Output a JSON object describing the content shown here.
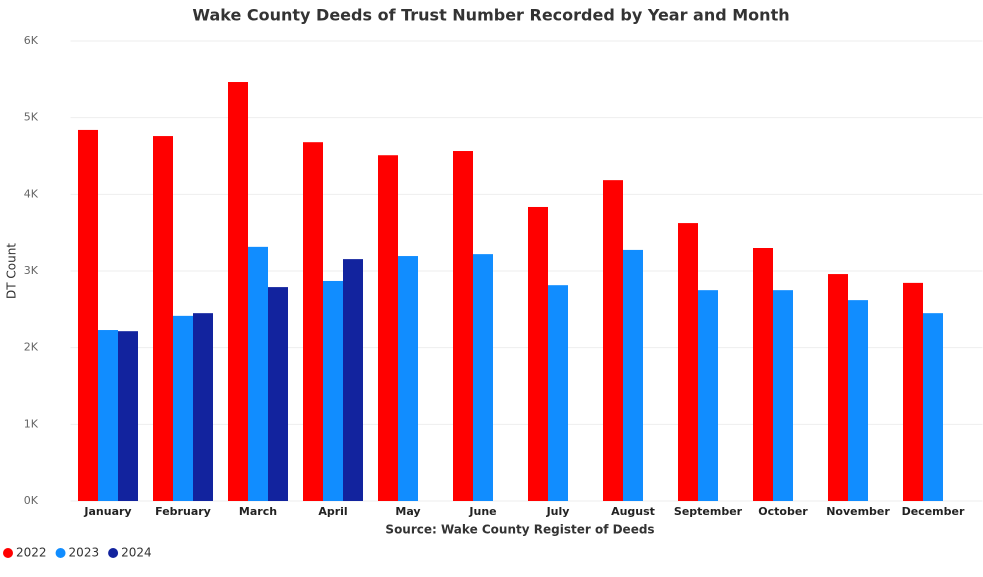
{
  "chart_data": {
    "type": "bar",
    "title": "Wake County Deeds of Trust Number Recorded by Year and Month",
    "x_label": "Source: Wake County Register of Deeds",
    "y_label": "DT Count",
    "categories": [
      "January",
      "February",
      "March",
      "April",
      "May",
      "June",
      "July",
      "August",
      "September",
      "October",
      "November",
      "December"
    ],
    "series": [
      {
        "name": "2022",
        "color": "#ff0000",
        "values": [
          4840,
          4760,
          5465,
          4680,
          4510,
          4565,
          3835,
          4185,
          3625,
          3300,
          2960,
          2845
        ]
      },
      {
        "name": "2023",
        "color": "#118dff",
        "values": [
          2230,
          2415,
          3315,
          2870,
          3195,
          3220,
          2815,
          3275,
          2750,
          2750,
          2620,
          2450
        ]
      },
      {
        "name": "2024",
        "color": "#12239e",
        "values": [
          2215,
          2450,
          2790,
          3155,
          null,
          null,
          null,
          null,
          null,
          null,
          null,
          null
        ]
      }
    ],
    "ylim": [
      0,
      6000
    ],
    "yticks": [
      {
        "value": 0,
        "label": "0K"
      },
      {
        "value": 1000,
        "label": "1K"
      },
      {
        "value": 2000,
        "label": "2K"
      },
      {
        "value": 3000,
        "label": "3K"
      },
      {
        "value": 4000,
        "label": "4K"
      },
      {
        "value": 5000,
        "label": "5K"
      },
      {
        "value": 6000,
        "label": "6K"
      }
    ],
    "grid": true,
    "legend": "bottom-left"
  }
}
